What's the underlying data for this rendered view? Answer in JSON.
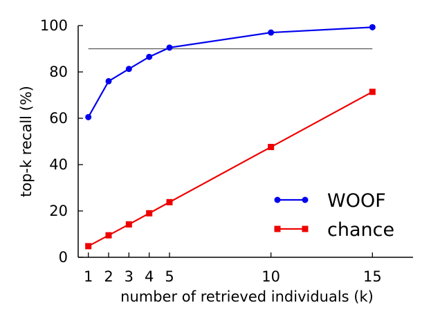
{
  "chart_data": {
    "type": "line",
    "xlabel": "number of retrieved individuals (k)",
    "ylabel": "top-k recall (%)",
    "xlim": [
      0.5,
      17
    ],
    "ylim": [
      0,
      100
    ],
    "x_ticks": [
      1,
      2,
      3,
      4,
      5,
      10,
      15
    ],
    "y_ticks": [
      0,
      20,
      40,
      60,
      80,
      100
    ],
    "x": [
      1,
      2,
      3,
      4,
      5,
      10,
      15
    ],
    "series": [
      {
        "name": "WOOF",
        "values": [
          60.5,
          76,
          81.3,
          86.5,
          90.5,
          97,
          99.3
        ],
        "color": "#0000ee",
        "marker": "circle"
      },
      {
        "name": "chance",
        "values": [
          4.8,
          9.5,
          14.2,
          19,
          23.8,
          47.6,
          71.4
        ],
        "color": "#ee0000",
        "marker": "square"
      }
    ],
    "reference_line": {
      "y": 90,
      "x_range": [
        1,
        15
      ],
      "color": "#555555"
    },
    "legend_position": "bottom-right",
    "grid": false
  }
}
